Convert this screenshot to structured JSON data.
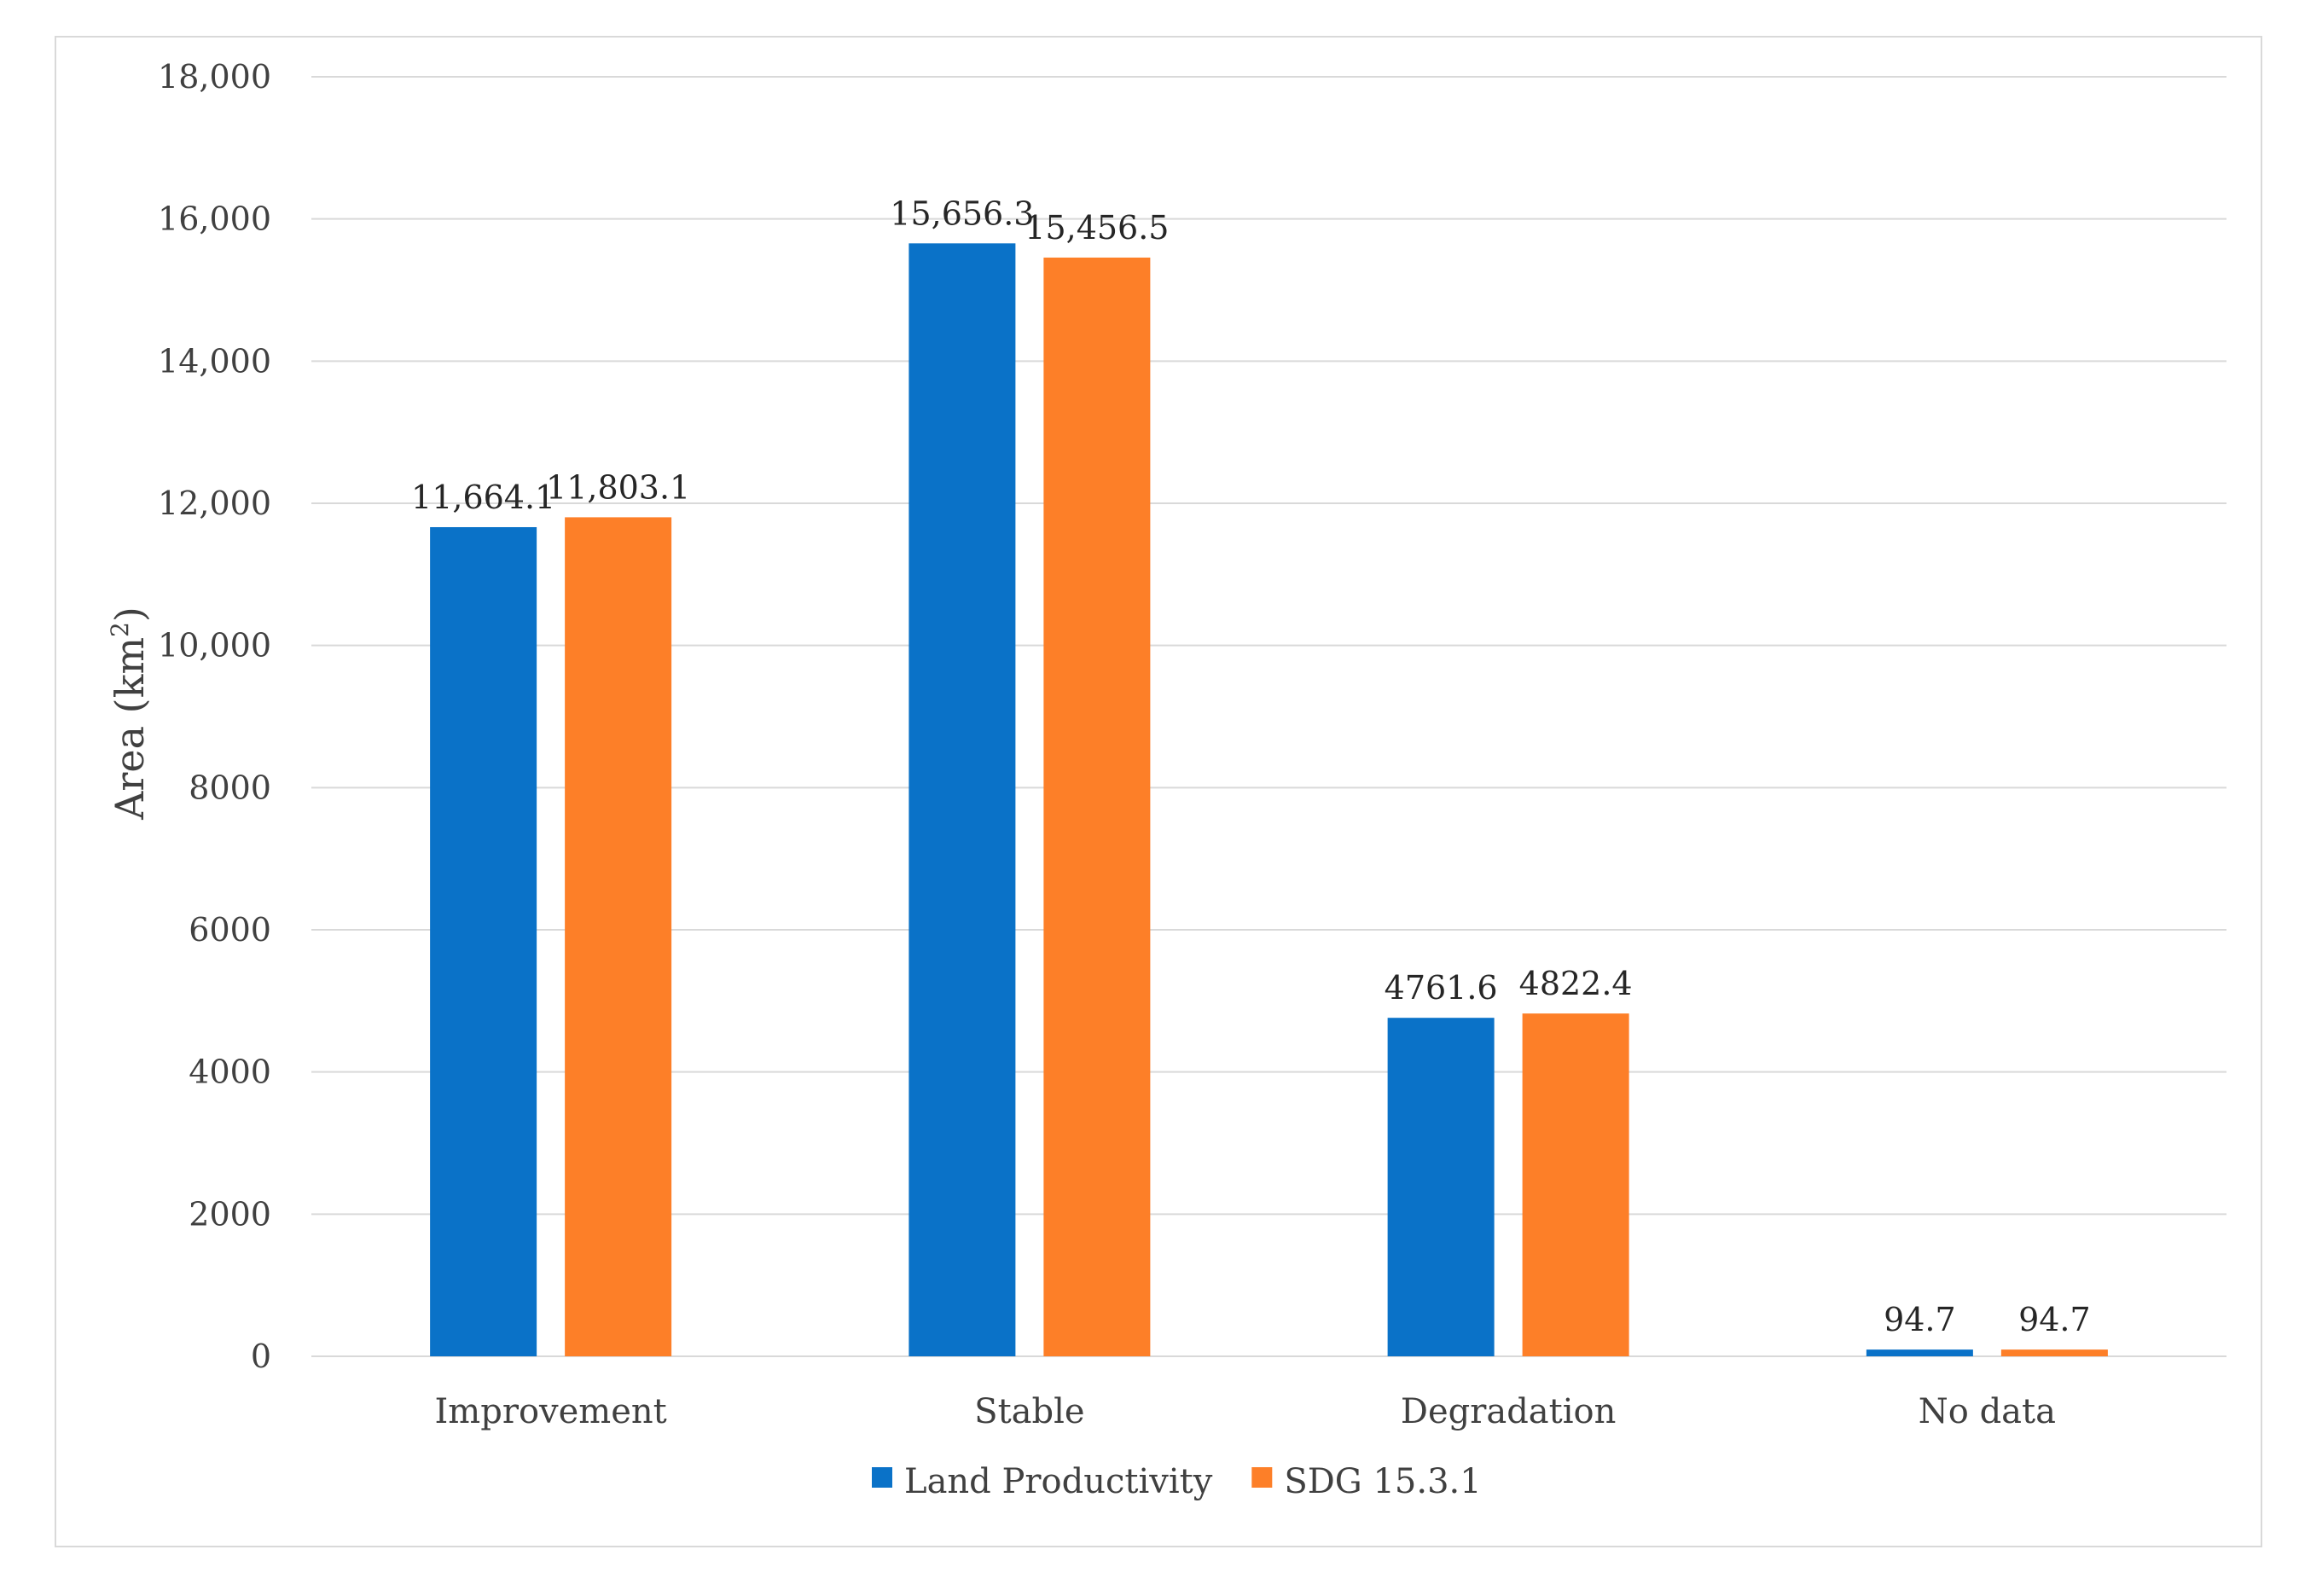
{
  "chart_data": {
    "type": "bar",
    "title": "",
    "xlabel": "",
    "ylabel": "Area (km",
    "ylabel_sup": "2",
    "ylabel_close": ")",
    "ylim": [
      0,
      18000
    ],
    "yticks": [
      0,
      2000,
      4000,
      6000,
      8000,
      10000,
      12000,
      14000,
      16000,
      18000
    ],
    "ytick_labels": [
      "0",
      "2000",
      "4000",
      "6000",
      "8000",
      "10,000",
      "12,000",
      "14,000",
      "16,000",
      "18,000"
    ],
    "grid": true,
    "categories": [
      "Improvement",
      "Stable",
      "Degradation",
      "No data"
    ],
    "series": [
      {
        "name": "Land Productivity",
        "color": "#0a72c8",
        "values": [
          11664.1,
          15656.3,
          4761.6,
          94.7
        ],
        "labels": [
          "11,664.1",
          "15,656.3",
          "4761.6",
          "94.7"
        ]
      },
      {
        "name": "SDG 15.3.1",
        "color": "#fd7f28",
        "values": [
          11803.1,
          15456.5,
          4822.4,
          94.7
        ],
        "labels": [
          "11,803.1",
          "15,456.5",
          "4822.4",
          "94.7"
        ]
      }
    ],
    "legend_position": "bottom"
  }
}
